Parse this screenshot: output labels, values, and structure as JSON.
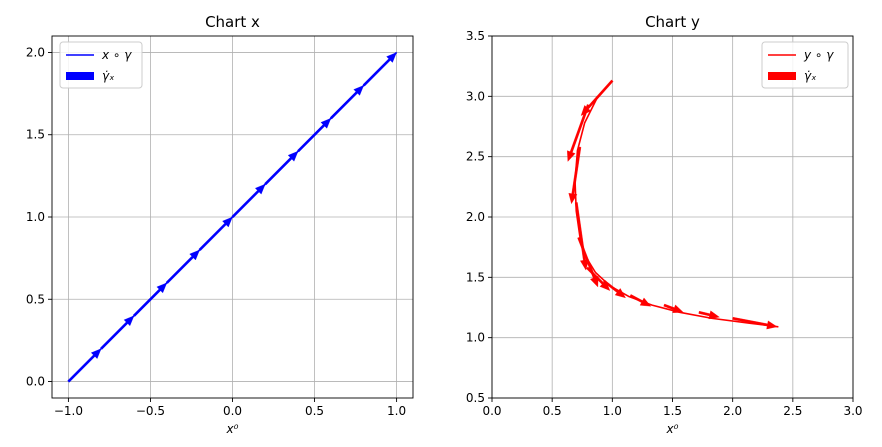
{
  "chart_data": [
    {
      "type": "line",
      "title": "Chart x",
      "xlabel": "x⁰",
      "ylabel": "",
      "xlim": [
        -1.1,
        1.1
      ],
      "ylim": [
        -0.1,
        2.1
      ],
      "xticks": [
        -1.0,
        -0.5,
        0.0,
        0.5,
        1.0
      ],
      "xtick_labels": [
        "−1.0",
        "−0.5",
        "0.0",
        "0.5",
        "1.0"
      ],
      "yticks": [
        0.0,
        0.5,
        1.0,
        1.5,
        2.0
      ],
      "ytick_labels": [
        "0.0",
        "0.5",
        "1.0",
        "1.5",
        "2.0"
      ],
      "grid": true,
      "legend_position": "top-left",
      "color": "#0000ff",
      "series": [
        {
          "name": "x ∘ γ",
          "kind": "line",
          "x": [
            -1.0,
            1.0
          ],
          "y": [
            0.0,
            2.0
          ]
        },
        {
          "name": "γ̇ₓ",
          "kind": "quiver",
          "x": [
            -1.0,
            -0.8,
            -0.6,
            -0.4,
            -0.2,
            0.0,
            0.2,
            0.4,
            0.6,
            0.8
          ],
          "y": [
            0.0,
            0.2,
            0.4,
            0.6,
            0.8,
            1.0,
            1.2,
            1.4,
            1.6,
            1.8
          ],
          "dx": [
            0.2,
            0.2,
            0.2,
            0.2,
            0.2,
            0.2,
            0.2,
            0.2,
            0.2,
            0.2
          ],
          "dy": [
            0.2,
            0.2,
            0.2,
            0.2,
            0.2,
            0.2,
            0.2,
            0.2,
            0.2,
            0.2
          ]
        }
      ]
    },
    {
      "type": "line",
      "title": "Chart y",
      "xlabel": "x⁰",
      "ylabel": "",
      "xlim": [
        0.0,
        3.0
      ],
      "ylim": [
        0.5,
        3.5
      ],
      "xticks": [
        0.0,
        0.5,
        1.0,
        1.5,
        2.0,
        2.5,
        3.0
      ],
      "xtick_labels": [
        "0.0",
        "0.5",
        "1.0",
        "1.5",
        "2.0",
        "2.5",
        "3.0"
      ],
      "yticks": [
        0.5,
        1.0,
        1.5,
        2.0,
        2.5,
        3.0,
        3.5
      ],
      "ytick_labels": [
        "0.5",
        "1.0",
        "1.5",
        "2.0",
        "2.5",
        "3.0",
        "3.5"
      ],
      "grid": true,
      "legend_position": "top-right",
      "color": "#ff0000",
      "series": [
        {
          "name": "y ∘ γ",
          "kind": "line",
          "x": [
            1.0,
            0.87,
            0.77,
            0.71,
            0.69,
            0.7,
            0.73,
            0.78,
            0.86,
            0.98,
            1.14,
            1.33,
            1.56,
            1.83,
            2.14,
            2.38
          ],
          "y": [
            3.13,
            2.98,
            2.78,
            2.55,
            2.3,
            2.05,
            1.84,
            1.67,
            1.54,
            1.43,
            1.34,
            1.27,
            1.21,
            1.16,
            1.12,
            1.09
          ]
        },
        {
          "name": "γ̇ₓ",
          "kind": "quiver",
          "x": [
            1.0,
            0.8,
            0.73,
            0.7,
            0.72,
            0.79,
            0.93,
            1.15,
            1.43,
            1.72,
            2.0
          ],
          "y": [
            3.13,
            2.93,
            2.58,
            2.12,
            1.83,
            1.58,
            1.47,
            1.35,
            1.27,
            1.21,
            1.16
          ],
          "dx": [
            -0.26,
            -0.17,
            -0.07,
            0.08,
            0.16,
            0.19,
            0.18,
            0.17,
            0.16,
            0.17,
            0.37
          ],
          "dy": [
            -0.29,
            -0.47,
            -0.47,
            -0.56,
            -0.41,
            -0.19,
            -0.14,
            -0.09,
            -0.06,
            -0.04,
            -0.07
          ]
        }
      ]
    }
  ]
}
